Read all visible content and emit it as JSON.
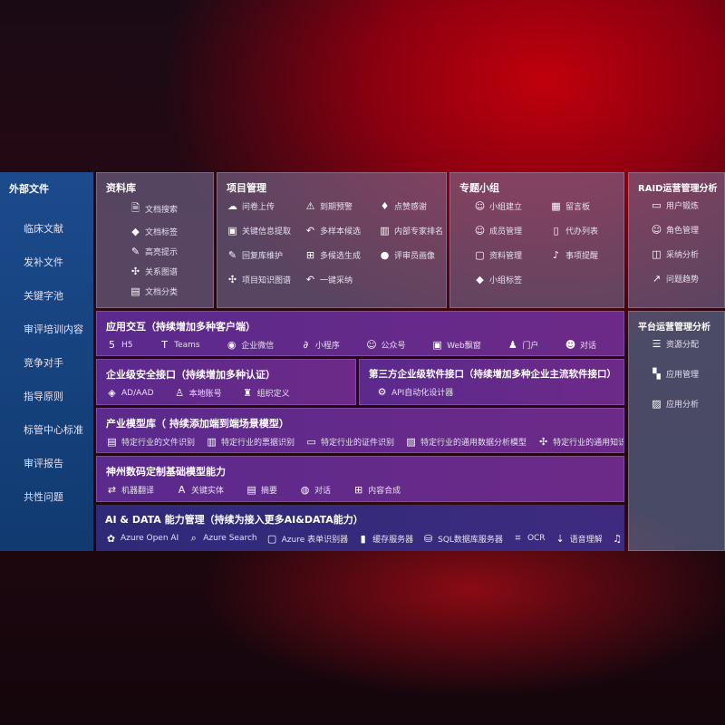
{
  "external": {
    "title": "外部文件",
    "items": [
      "临床文献",
      "发补文件",
      "关键字池",
      "审评培训内容",
      "竞争对手",
      "指导原则",
      "标管中心标准",
      "审评报告",
      "共性问题"
    ]
  },
  "library": {
    "title": "资料库",
    "items": [
      {
        "icon": "doc-search-icon",
        "label": "文档搜索"
      },
      {
        "icon": "tag-icon",
        "label": "文档标签"
      },
      {
        "icon": "pen-icon",
        "label": "高亮提示"
      },
      {
        "icon": "graph-icon",
        "label": "关系图谱"
      },
      {
        "icon": "doc-list-icon",
        "label": "文档分类"
      }
    ]
  },
  "project": {
    "title": "项目管理",
    "items": [
      {
        "icon": "cloud-upload-icon",
        "label": "问卷上传"
      },
      {
        "icon": "alarm-icon",
        "label": "到期预警"
      },
      {
        "icon": "thumbs-up-icon",
        "label": "点赞感谢"
      },
      {
        "icon": "window-icon",
        "label": "关键信息提取"
      },
      {
        "icon": "reply-icon",
        "label": "多样本候选"
      },
      {
        "icon": "ranking-icon",
        "label": "内部专家排名"
      },
      {
        "icon": "edit-icon",
        "label": "回复库维护"
      },
      {
        "icon": "puzzle-icon",
        "label": "多候选生成"
      },
      {
        "icon": "user-icon",
        "label": "评审员画像"
      },
      {
        "icon": "graph-icon",
        "label": "项目知识图谱"
      },
      {
        "icon": "reply-icon",
        "label": "一键采纳"
      }
    ]
  },
  "group": {
    "title": "专题小组",
    "items": [
      {
        "icon": "users-icon",
        "label": "小组建立"
      },
      {
        "icon": "bbs-icon",
        "label": "留言板"
      },
      {
        "icon": "user-add-icon",
        "label": "成员管理"
      },
      {
        "icon": "clipboard-icon",
        "label": "代办列表"
      },
      {
        "icon": "folder-icon",
        "label": "资料管理"
      },
      {
        "icon": "bell-icon",
        "label": "事项提醒"
      },
      {
        "icon": "tag-icon",
        "label": "小组标签"
      }
    ]
  },
  "raid": {
    "title": "RAID运营管理分析",
    "items": [
      {
        "icon": "id-card-icon",
        "label": "用户锻炼"
      },
      {
        "icon": "users-icon",
        "label": "角色管理"
      },
      {
        "icon": "qa-icon",
        "label": "采纳分析"
      },
      {
        "icon": "trend-icon",
        "label": "问题趋势"
      }
    ]
  },
  "platform": {
    "title": "平台运营管理分析",
    "items": [
      {
        "icon": "list-icon",
        "label": "资源分配"
      },
      {
        "icon": "apps-icon",
        "label": "应用管理"
      },
      {
        "icon": "chart-icon",
        "label": "应用分析"
      }
    ]
  },
  "app": {
    "title": "应用交互（持续增加多种客户端）",
    "items": [
      {
        "icon": "html5-icon",
        "label": "H5"
      },
      {
        "icon": "teams-icon",
        "label": "Teams"
      },
      {
        "icon": "wechat-icon",
        "label": "企业微信"
      },
      {
        "icon": "miniprogram-icon",
        "label": "小程序"
      },
      {
        "icon": "users-icon",
        "label": "公众号"
      },
      {
        "icon": "window-icon",
        "label": "Web飘窗"
      },
      {
        "icon": "portal-icon",
        "label": "门户"
      },
      {
        "icon": "chat-users-icon",
        "label": "对话"
      }
    ]
  },
  "security": {
    "title": "企业级安全接口（持续增加多种认证）",
    "items": [
      {
        "icon": "diamond-icon",
        "label": "AD/AAD"
      },
      {
        "icon": "user-lock-icon",
        "label": "本地账号"
      },
      {
        "icon": "org-icon",
        "label": "组织定义"
      }
    ]
  },
  "third": {
    "title": "第三方企业级软件接口（持续增加多种企业主流软件接口）",
    "items": [
      {
        "icon": "gear-icon",
        "label": "API自动化设计器"
      }
    ]
  },
  "industry": {
    "title": "产业模型库（ 持续添加端到端场景模型）",
    "items": [
      {
        "icon": "doc-icon",
        "label": "特定行业的文件识别"
      },
      {
        "icon": "receipt-icon",
        "label": "特定行业的票据识别"
      },
      {
        "icon": "id-card-icon",
        "label": "特定行业的证件识别"
      },
      {
        "icon": "chart-icon",
        "label": "特定行业的通用数据分析模型"
      },
      {
        "icon": "graph-icon",
        "label": "特定行业的通用知识图谱模型"
      }
    ]
  },
  "base": {
    "title": "神州数码定制基础模型能力",
    "items": [
      {
        "icon": "translate-icon",
        "label": "机器翻译"
      },
      {
        "icon": "entity-icon",
        "label": "关键实体"
      },
      {
        "icon": "doc-icon",
        "label": "摘要"
      },
      {
        "icon": "chat-icon",
        "label": "对话"
      },
      {
        "icon": "puzzle-icon",
        "label": "内容合成"
      }
    ]
  },
  "ai": {
    "title": "AI & DATA 能力管理（持续为接入更多AI&DATA能力）",
    "items": [
      {
        "icon": "openai-icon",
        "label": "Azure Open AI"
      },
      {
        "icon": "search-icon",
        "label": "Azure Search"
      },
      {
        "icon": "form-icon",
        "label": "Azure 表单识别器"
      },
      {
        "icon": "cache-icon",
        "label": "缓存服务器"
      },
      {
        "icon": "database-icon",
        "label": "SQL数据库服务器"
      },
      {
        "icon": "ocr-icon",
        "label": "OCR"
      },
      {
        "icon": "speech-icon",
        "label": "语音理解"
      },
      {
        "icon": "tts-icon",
        "label": "TTS"
      }
    ]
  }
}
